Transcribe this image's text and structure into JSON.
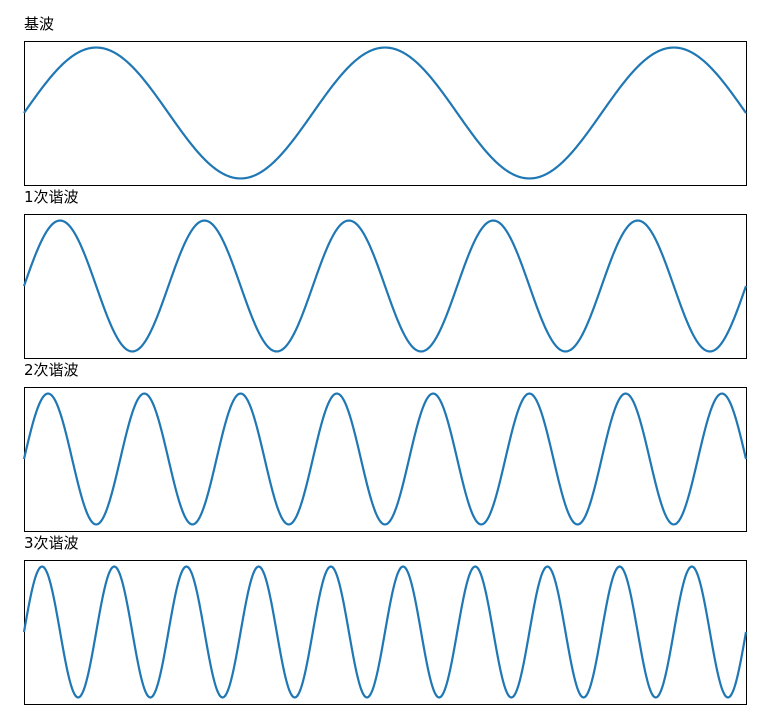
{
  "chart_data": [
    {
      "type": "line",
      "title": "基波",
      "frequency_cycles": 2.5,
      "amplitude": 1,
      "x_range": [
        0,
        1
      ],
      "ylim": [
        -1.1,
        1.1
      ],
      "color": "#1f77b4",
      "grid": false,
      "axes_ticks": false
    },
    {
      "type": "line",
      "title": "1次谐波",
      "frequency_cycles": 5,
      "amplitude": 1,
      "x_range": [
        0,
        1
      ],
      "ylim": [
        -1.1,
        1.1
      ],
      "color": "#1f77b4",
      "grid": false,
      "axes_ticks": false
    },
    {
      "type": "line",
      "title": "2次谐波",
      "frequency_cycles": 7.5,
      "amplitude": 1,
      "x_range": [
        0,
        1
      ],
      "ylim": [
        -1.1,
        1.1
      ],
      "color": "#1f77b4",
      "grid": false,
      "axes_ticks": false
    },
    {
      "type": "line",
      "title": "3次谐波",
      "frequency_cycles": 10,
      "amplitude": 1,
      "x_range": [
        0,
        1
      ],
      "ylim": [
        -1.1,
        1.1
      ],
      "color": "#1f77b4",
      "grid": false,
      "axes_ticks": false
    }
  ]
}
